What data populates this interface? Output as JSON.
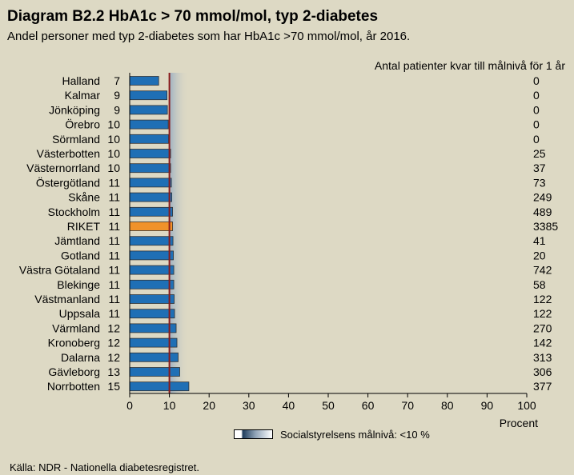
{
  "title": "Diagram B2.2 HbA1c > 70 mmol/mol, typ 2-diabetes",
  "subtitle": "Andel personer med typ 2-diabetes som har HbA1c >70 mmol/mol,  år 2016.",
  "right_header": "Antal patienter kvar till målnivå för 1 år",
  "legend_label": "Socialstyrelsens målnivå: <10 %",
  "source": "Källa: NDR - Nationella diabetesregistret.",
  "colors": {
    "bar": "#1f6fb5",
    "highlight_bar": "#f0922a",
    "target_line": "#8b1a1a",
    "background": "#ddd9c4"
  },
  "chart_data": {
    "type": "bar",
    "orientation": "horizontal",
    "xlabel": "Procent",
    "xlim": [
      0,
      100
    ],
    "xticks": [
      0,
      10,
      20,
      30,
      40,
      50,
      60,
      70,
      80,
      90,
      100
    ],
    "target": 10,
    "highlight": "RIKET",
    "categories": [
      "Halland",
      "Kalmar",
      "Jönköping",
      "Örebro",
      "Sörmland",
      "Västerbotten",
      "Västernorrland",
      "Östergötland",
      "Skåne",
      "Stockholm",
      "RIKET",
      "Jämtland",
      "Gotland",
      "Västra Götaland",
      "Blekinge",
      "Västmanland",
      "Uppsala",
      "Värmland",
      "Kronoberg",
      "Dalarna",
      "Gävleborg",
      "Norrbotten"
    ],
    "values": [
      7.3,
      9.4,
      9.5,
      9.7,
      9.8,
      10.3,
      10.3,
      10.5,
      10.6,
      10.8,
      10.8,
      10.9,
      11.0,
      11.1,
      11.1,
      11.2,
      11.3,
      11.7,
      11.9,
      12.2,
      12.6,
      14.9
    ],
    "value_labels": [
      "7",
      "9",
      "9",
      "10",
      "10",
      "10",
      "10",
      "11",
      "11",
      "11",
      "11",
      "11",
      "11",
      "11",
      "11",
      "11",
      "11",
      "12",
      "12",
      "12",
      "13",
      "15"
    ],
    "patients_remaining": [
      "0",
      "0",
      "0",
      "0",
      "0",
      "25",
      "37",
      "73",
      "249",
      "489",
      "3385",
      "41",
      "20",
      "742",
      "58",
      "122",
      "122",
      "270",
      "142",
      "313",
      "306",
      "377"
    ]
  }
}
